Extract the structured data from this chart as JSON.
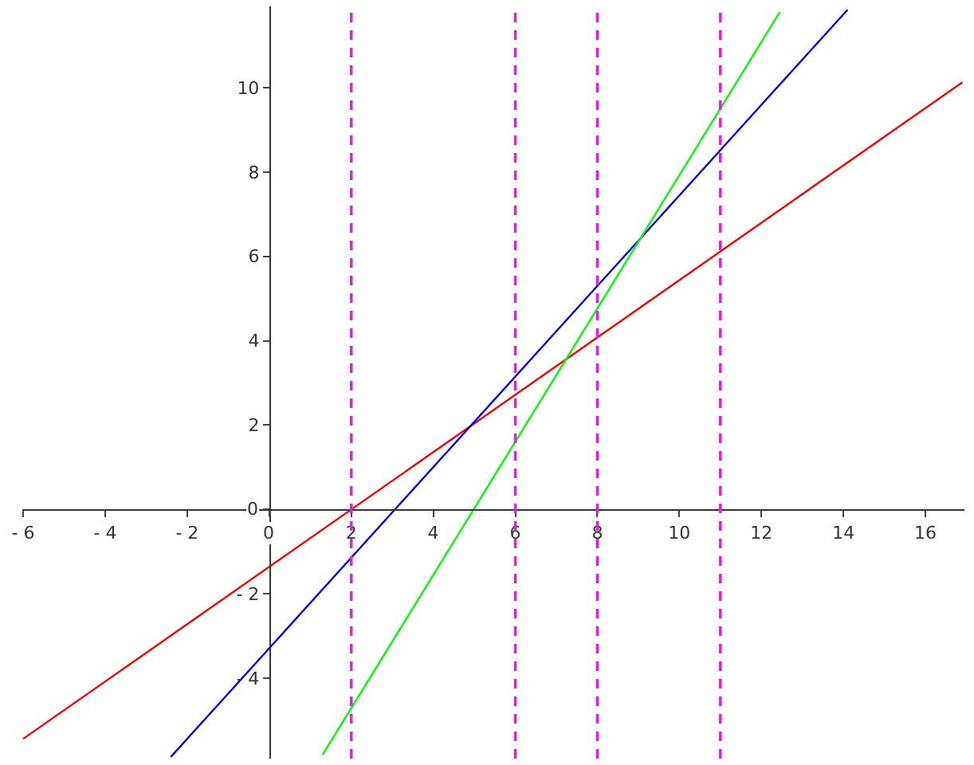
{
  "chart_data": {
    "type": "line",
    "series": [
      {
        "color": "#ff0000",
        "x": [
          -6,
          16.9
        ],
        "values": [
          -5.44,
          10.13
        ]
      },
      {
        "color": "#0000ff",
        "x": [
          -2.4,
          14.1
        ],
        "values": [
          -5.87,
          11.85
        ]
      },
      {
        "color": "#00ff00",
        "x": [
          1.3,
          12.45
        ],
        "values": [
          -5.82,
          11.8
        ]
      }
    ],
    "xlim": [
      -6.02,
      16.95
    ],
    "ylim": [
      -5.91,
      11.93
    ],
    "xticks": [
      {
        "value": -6,
        "label": "- 6"
      },
      {
        "value": -4,
        "label": "- 4"
      },
      {
        "value": -2,
        "label": "- 2"
      },
      0,
      2,
      4,
      6,
      8,
      10,
      12,
      14,
      16
    ],
    "yticks": [
      {
        "value": -4,
        "label": "- 4"
      },
      {
        "value": -2,
        "label": "- 2"
      },
      0,
      2,
      4,
      6,
      8,
      10
    ],
    "ref_lines": [
      {
        "axis": "x",
        "value": 2,
        "color": "#e020e0",
        "line_style": "dashed"
      },
      {
        "axis": "x",
        "value": 6,
        "color": "#e020e0",
        "line_style": "dashed"
      },
      {
        "axis": "x",
        "value": 8,
        "color": "#e020e0",
        "line_style": "dashed"
      },
      {
        "axis": "x",
        "value": 11,
        "color": "#e020e0",
        "line_style": "dashed"
      }
    ],
    "marker": "none",
    "line_style": "solid"
  }
}
